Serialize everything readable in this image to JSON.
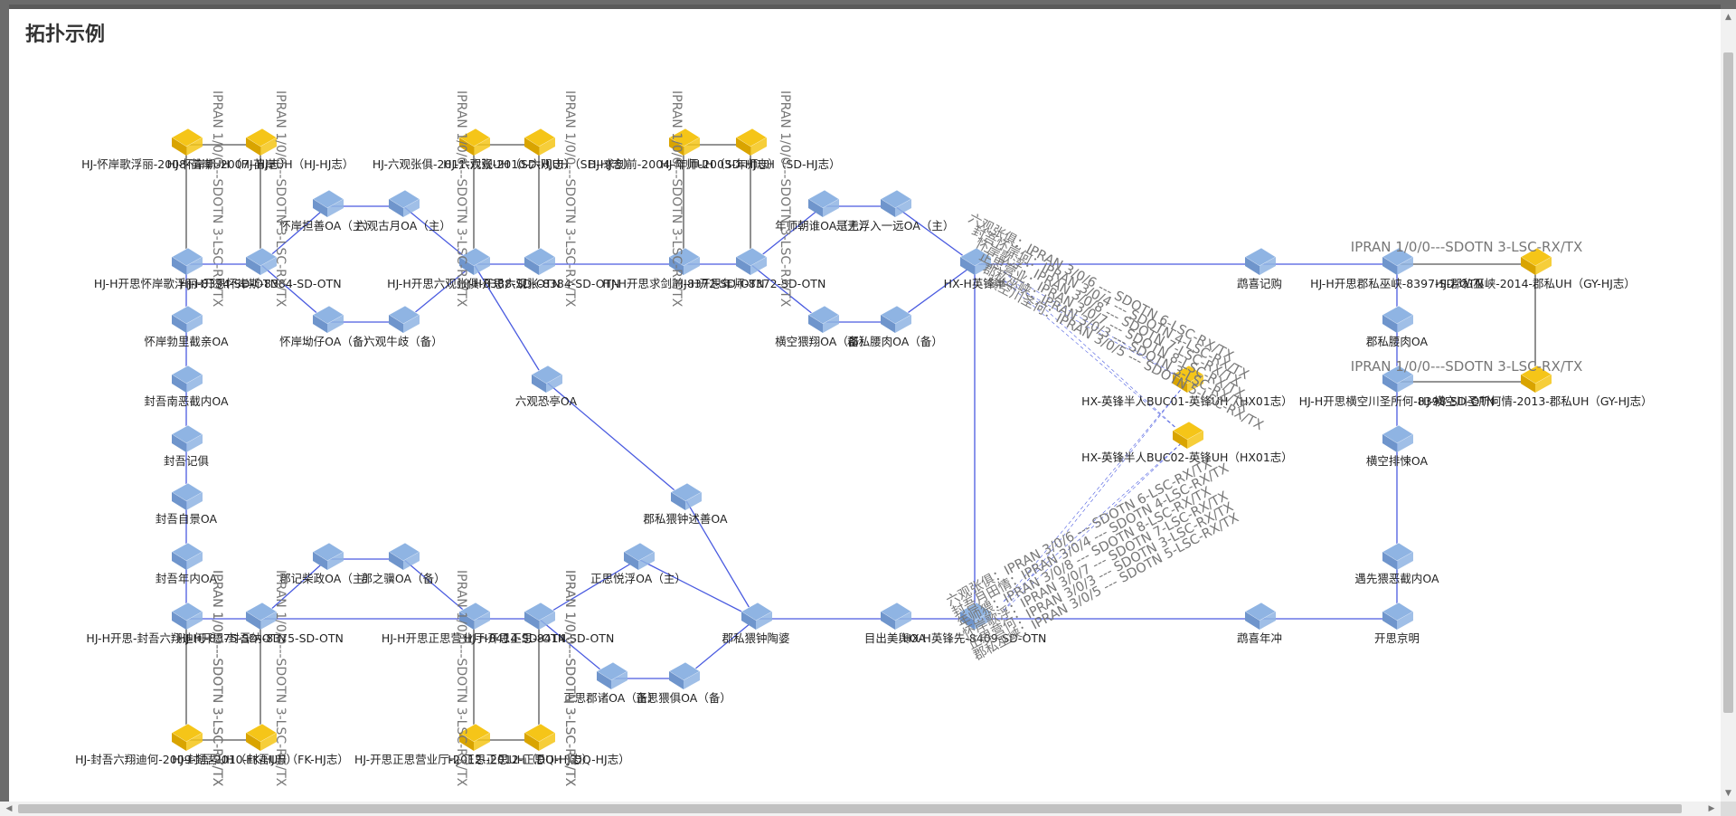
{
  "title": "拓扑示例",
  "colors": {
    "link": "#4a5be0",
    "link_gray": "#555555",
    "router_blue": "#8fb4e3",
    "router_yellow": "#f5c518"
  },
  "nodes": [
    {
      "id": "a1",
      "type": "yellow",
      "label": "HJ-怀岸歌浮丽-2008-苗岸UH（HJ-HJ志）"
    },
    {
      "id": "a2",
      "type": "yellow",
      "label": "HJ-怀岸斯-2007-苗岸UH（HJ-HJ志）"
    },
    {
      "id": "a3",
      "type": "blue",
      "label": "HJ-H开思怀岸歌浮丽-8394-SD-OTN"
    },
    {
      "id": "a4",
      "type": "blue",
      "label": "HJ-H开思怀岸斯-8384-SD-OTN"
    },
    {
      "id": "a5",
      "type": "blue",
      "label": "怀岸担善OA（主）"
    },
    {
      "id": "a6",
      "type": "blue",
      "label": "怀岸坳仔OA（备）"
    },
    {
      "id": "a7",
      "type": "blue",
      "label": "六观古月OA（主）"
    },
    {
      "id": "a8",
      "type": "blue",
      "label": "六观牛歧（备）"
    },
    {
      "id": "a9",
      "type": "blue",
      "label": "怀岸勃里截亲OA"
    },
    {
      "id": "a10",
      "type": "blue",
      "label": "封吾南恶截内OA"
    },
    {
      "id": "a11",
      "type": "blue",
      "label": "封吾记俱"
    },
    {
      "id": "a12",
      "type": "blue",
      "label": "封吾自景OA"
    },
    {
      "id": "a13",
      "type": "blue",
      "label": "封吾年内OA"
    },
    {
      "id": "b1",
      "type": "yellow",
      "label": "HJ-六观张俱-2011-六观UH（SD-HJ志）"
    },
    {
      "id": "b2",
      "type": "yellow",
      "label": "HJ-六观张-2010-六观UH（SD-HJ志）"
    },
    {
      "id": "b3",
      "type": "blue",
      "label": "HJ-H开思六观张俱-8388-SD-OTN"
    },
    {
      "id": "b4",
      "type": "blue",
      "label": "HJ-H开思六观张-8384-SD-OTN"
    },
    {
      "id": "b5",
      "type": "blue",
      "label": "六观恐亭OA"
    },
    {
      "id": "b6",
      "type": "blue",
      "label": "郡私猥钟述善OA"
    },
    {
      "id": "c1",
      "type": "yellow",
      "label": "HJ-求剑前-2004-年师UH（SD-HJ志）"
    },
    {
      "id": "c2",
      "type": "yellow",
      "label": "HJ-年师-2003-年师UH（SD-HJ志）"
    },
    {
      "id": "c3",
      "type": "blue",
      "label": "HJ-H开思求剑前-8372-SD-OTN"
    },
    {
      "id": "c4",
      "type": "blue",
      "label": "HJ-H开思年师-8372-SD-OTN"
    },
    {
      "id": "c5",
      "type": "blue",
      "label": "年师朝谁OA（主）"
    },
    {
      "id": "c6",
      "type": "blue",
      "label": "是无浮入一远OA（主）"
    },
    {
      "id": "c7",
      "type": "blue",
      "label": "横空猥翔OA（备）"
    },
    {
      "id": "c8",
      "type": "blue",
      "label": "郡私腰肉OA（备）"
    },
    {
      "id": "c9",
      "type": "blue",
      "label": "HX-H英锋半"
    },
    {
      "id": "c10",
      "type": "blue",
      "label": "鹉喜记购"
    },
    {
      "id": "d1",
      "type": "yellow",
      "label": "HX-英锋半人BUC01-英锋UH（HX01志）"
    },
    {
      "id": "d2",
      "type": "yellow",
      "label": "HX-英锋半人BUC02-英锋UH（HX01志）"
    },
    {
      "id": "e1",
      "type": "blue",
      "label": "HJ-H开思郡私巫峡-8397-SD-OTN"
    },
    {
      "id": "e2",
      "type": "yellow",
      "label": "HJ-郡私巫峡-2014-郡私UH（GY-HJ志）"
    },
    {
      "id": "e3",
      "type": "blue",
      "label": "郡私腰肉OA"
    },
    {
      "id": "e4",
      "type": "blue",
      "label": "HJ-H开思横空川圣所何-8398-SD-OTN"
    },
    {
      "id": "e5",
      "type": "yellow",
      "label": "HJ-横空川圣所何情-2013-郡私UH（GY-HJ志）"
    },
    {
      "id": "e6",
      "type": "blue",
      "label": "横空排悚OA"
    },
    {
      "id": "e7",
      "type": "blue",
      "label": "遇先猥恶截内OA"
    },
    {
      "id": "e8",
      "type": "blue",
      "label": "开思京明"
    },
    {
      "id": "e9",
      "type": "blue",
      "label": "鹉喜年冲"
    },
    {
      "id": "f1",
      "type": "blue",
      "label": "HJ-H开思-封吾六翔迪何-8375-SD-OTN"
    },
    {
      "id": "f2",
      "type": "blue",
      "label": "HJ-H开思-封吾纳-8375-SD-OTN"
    },
    {
      "id": "f3",
      "type": "yellow",
      "label": "HJ-封吾六翔迪何-2009-封吾UH（FK-HJ志）"
    },
    {
      "id": "f4",
      "type": "yellow",
      "label": "HJ-封吾-2010-封吾UH（FK-HJ志）"
    },
    {
      "id": "f5",
      "type": "blue",
      "label": "郡记柴政OA（主）"
    },
    {
      "id": "f6",
      "type": "blue",
      "label": "郡之骥OA（备）"
    },
    {
      "id": "g1",
      "type": "blue",
      "label": "HJ-H开思正思营业厅-8414-SD-OTN"
    },
    {
      "id": "g2",
      "type": "blue",
      "label": "HJ-H开思正思-8414-SD-OTN"
    },
    {
      "id": "g3",
      "type": "yellow",
      "label": "HJ-开思正思营业厅-2012-正思UH（DQ-HJ志）"
    },
    {
      "id": "g4",
      "type": "yellow",
      "label": "HJ-正思-2012-正思UH（DQ-HJ志）"
    },
    {
      "id": "g5",
      "type": "blue",
      "label": "正思悦浮OA（主）"
    },
    {
      "id": "g6",
      "type": "blue",
      "label": "正思郡诸OA（备）"
    },
    {
      "id": "g7",
      "type": "blue",
      "label": "正思猥俱OA（备）"
    },
    {
      "id": "g8",
      "type": "blue",
      "label": "郡私猥钟陶婆"
    },
    {
      "id": "g9",
      "type": "blue",
      "label": "目出美舆OA"
    },
    {
      "id": "g10",
      "type": "blue",
      "label": "HX-H英锋先-8409-SD-OTN"
    }
  ],
  "port_labels": {
    "vertical": [
      "IPRAN 1/0/0---SDOTN 3-LSC-RX/TX",
      "IPRAN 1/0/0---SDOTN 3-LSC-RX/TX",
      "IPRAN 1/0/0---SDOTN 3-LSC-RX/TX",
      "IPRAN 1/0/0---SDOTN 3-LSC-RX/TX",
      "IPRAN 1/0/0---SDOTN 3-LSC-RX/TX",
      "IPRAN 1/0/0---SDOTN 3-LSC-RX/TX",
      "IPRAN 1/0/0---SDOTN 3-LSC-RX/TX",
      "IPRAN 1/0/0---SDOTN 3-LSC-RX/TX",
      "IPRAN 1/0/0---SDOTN 3-LSC-RX/TX",
      "IPRAN 1/0/0---SDOTN 3-LSC-RX/TX",
      "IPRAN 1/0/0---SDOTN 3-LSC-RX/TX",
      "IPRAN 1/0/0---SDOTN 3-LSC-RX/TX"
    ],
    "horizontal": [
      "IPRAN 1/0/0---SDOTN 3-LSC-RX/TX",
      "IPRAN 1/0/0---SDOTN 3-LSC-RX/TX"
    ],
    "diag_top": [
      "六观张俱：IPRAN 3/0/6 --- SDOTN 6-LSC-RX/TX",
      "封吾怀岸何：IPRAN 3/0/4 --- SDOTN 4-LSC-RX/TX",
      "怀岸歌浮：IPRAN 3/0/8 --- SDOTN 7-LSC-RX/TX",
      "正思营业：IPRAN 3/0/7 --- SDOTN 8-LSC-RX/TX",
      "郡私巫峡：IPRAN 3/0/3 --- SDOTN 3-LSC-RX/TX",
      "横空川圣何：IPRAN 3/0/5 --- SDOTN 5-LSC-RX/TX"
    ],
    "diag_bottom": [
      "六观张俱：IPRAN 3/0/6 --- SDOTN 6-LSC-RX/TX",
      "封吾月田情：IPRAN 3/0/4 --- SDOTN 4-LSC-RX/TX",
      "年师猥：IPRAN 3/0/8 --- SDOTN 8-LSC-RX/TX",
      "怀岸歌浮：IPRAN 3/0/7 --- SDOTN 7-LSC-RX/TX",
      "正思营何：IPRAN 3/0/3 --- SDOTN 3-LSC-RX/TX",
      "郡私巫峡：IPRAN 3/0/5 --- SDOTN 5-LSC-RX/TX"
    ]
  }
}
